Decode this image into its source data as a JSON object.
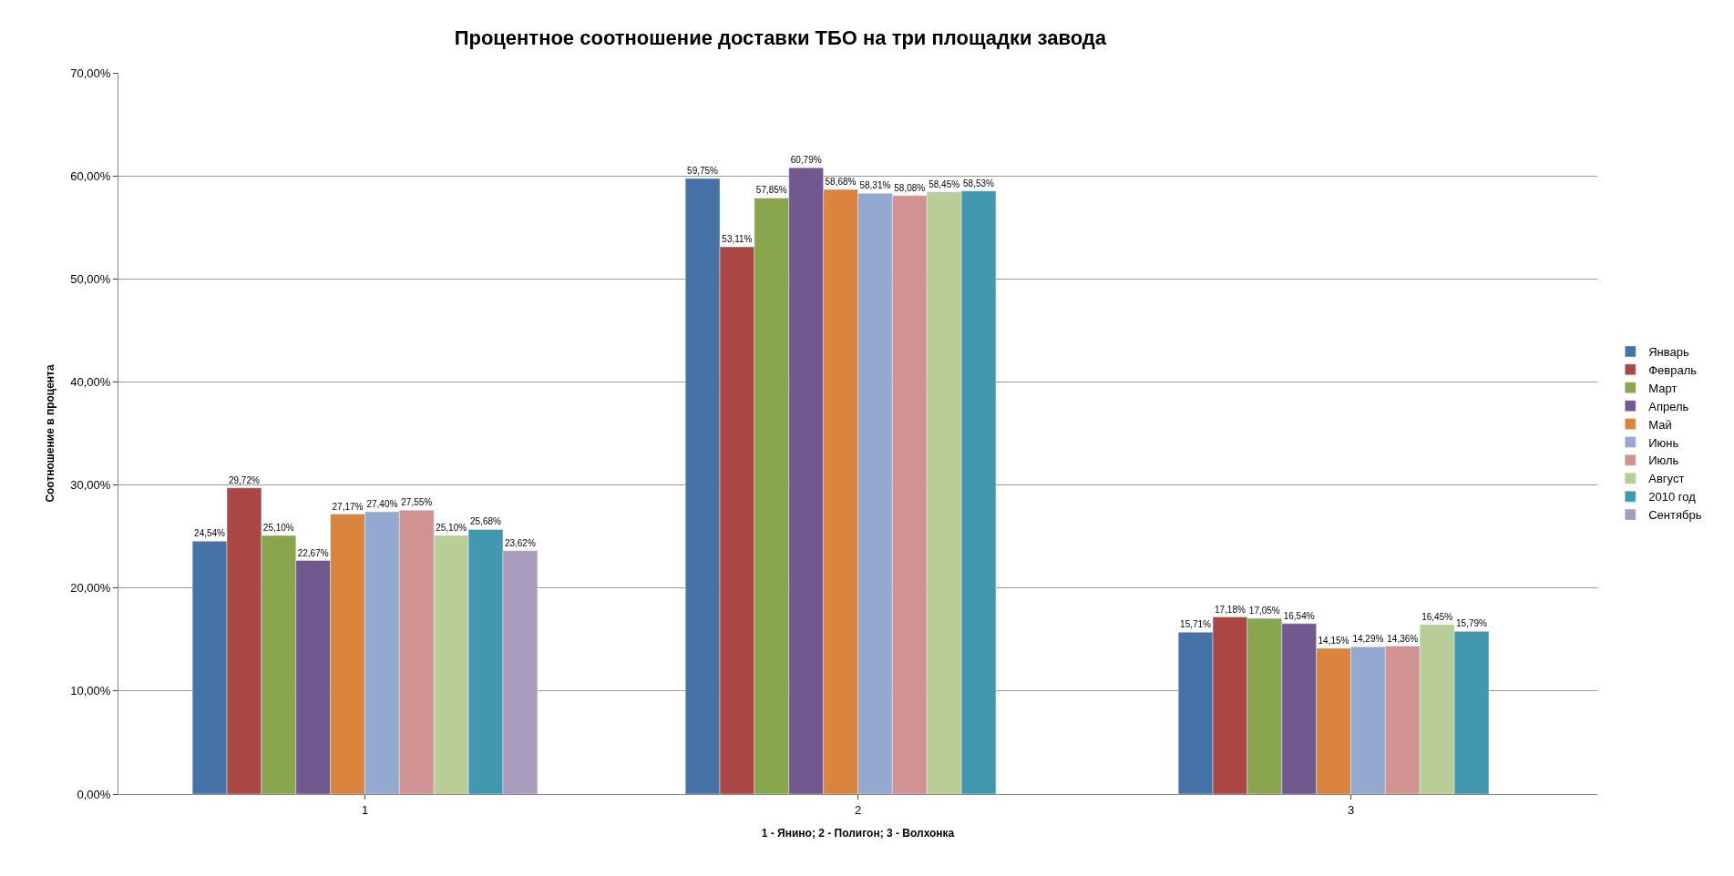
{
  "chart_data": {
    "type": "bar",
    "title": "Процентное соотношение доставки ТБО на три площадки завода",
    "xlabel": "1 - Янино; 2 - Полигон; 3 - Волхонка",
    "ylabel": "Соотношение в процента",
    "categories": [
      "1",
      "2",
      "3"
    ],
    "series": [
      {
        "name": "Январь",
        "color": "#4572a7",
        "values": [
          24.54,
          59.75,
          15.71
        ],
        "value_labels": [
          "24,54%",
          "59,75%",
          "15,71%"
        ]
      },
      {
        "name": "Февраль",
        "color": "#aa4643",
        "values": [
          29.72,
          53.11,
          17.18
        ],
        "value_labels": [
          "29,72%",
          "53,11%",
          "17,18%"
        ]
      },
      {
        "name": "Март",
        "color": "#89a54e",
        "values": [
          25.1,
          57.85,
          17.05
        ],
        "value_labels": [
          "25,10%",
          "57,85%",
          "17,05%"
        ]
      },
      {
        "name": "Апрель",
        "color": "#71588f",
        "values": [
          22.67,
          60.79,
          16.54
        ],
        "value_labels": [
          "22,67%",
          "60,79%",
          "16,54%"
        ]
      },
      {
        "name": "Май",
        "color": "#db843d",
        "values": [
          27.17,
          58.68,
          14.15
        ],
        "value_labels": [
          "27,17%",
          "58,68%",
          "14,15%"
        ]
      },
      {
        "name": "Июнь",
        "color": "#93a9cf",
        "values": [
          27.4,
          58.31,
          14.29
        ],
        "value_labels": [
          "27,40%",
          "58,31%",
          "14,29%"
        ]
      },
      {
        "name": "Июль",
        "color": "#d19392",
        "values": [
          27.55,
          58.08,
          14.36
        ],
        "value_labels": [
          "27,55%",
          "58,08%",
          "14,36%"
        ]
      },
      {
        "name": "Август",
        "color": "#b9cd96",
        "values": [
          25.1,
          58.45,
          16.45
        ],
        "value_labels": [
          "25,10%",
          "58,45%",
          "16,45%"
        ]
      },
      {
        "name": "2010 год",
        "color": "#4198af",
        "values": [
          25.68,
          58.53,
          15.79
        ],
        "value_labels": [
          "25,68%",
          "58,53%",
          "15,79%"
        ]
      },
      {
        "name": "Сентябрь",
        "color": "#a99bbd",
        "values": [
          23.62,
          null,
          null
        ],
        "value_labels": [
          "23,62%",
          null,
          null
        ]
      }
    ],
    "ylim": [
      0,
      70
    ],
    "yticks": [
      {
        "value": 0,
        "label": "0,00%"
      },
      {
        "value": 10,
        "label": "10,00%"
      },
      {
        "value": 20,
        "label": "20,00%"
      },
      {
        "value": 30,
        "label": "30,00%"
      },
      {
        "value": 40,
        "label": "40,00%"
      },
      {
        "value": 50,
        "label": "50,00%"
      },
      {
        "value": 60,
        "label": "60,00%"
      },
      {
        "value": 70,
        "label": "70,00%"
      }
    ],
    "grid": "y",
    "legend": "right"
  }
}
